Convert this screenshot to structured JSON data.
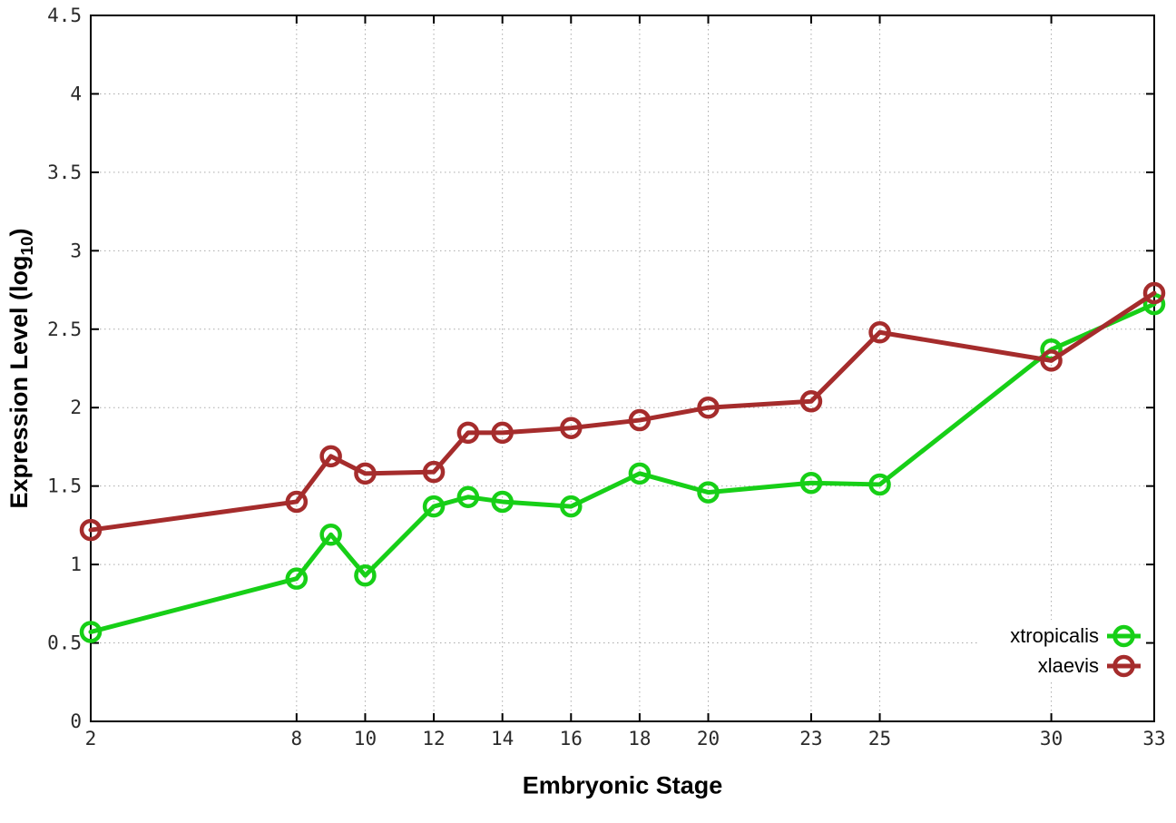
{
  "chart_data": {
    "type": "line",
    "title": "",
    "xlabel": "Embryonic Stage",
    "ylabel": "Expression Level (log10)",
    "ylabel_parts": {
      "main": "Expression Level (log",
      "sub": "10",
      "close": ")"
    },
    "x": [
      2,
      8,
      9,
      10,
      12,
      13,
      14,
      16,
      18,
      20,
      23,
      25,
      30,
      33
    ],
    "series": [
      {
        "name": "xtropicalis",
        "color": "#17cf17",
        "values": [
          0.57,
          0.91,
          1.19,
          0.93,
          1.37,
          1.43,
          1.4,
          1.37,
          1.58,
          1.46,
          1.52,
          1.51,
          2.37,
          2.66
        ]
      },
      {
        "name": "xlaevis",
        "color": "#a52c2c",
        "values": [
          1.22,
          1.4,
          1.69,
          1.58,
          1.59,
          1.84,
          1.84,
          1.87,
          1.92,
          2.0,
          2.04,
          2.48,
          2.3,
          2.73
        ]
      }
    ],
    "xlim": [
      2,
      33
    ],
    "ylim": [
      0,
      4.5
    ],
    "xticks": [
      "2",
      "8",
      "10",
      "12",
      "14",
      "16",
      "18",
      "20",
      "23",
      "25",
      "30",
      "33"
    ],
    "xtick_values": [
      2,
      8,
      10,
      12,
      14,
      16,
      18,
      20,
      23,
      25,
      30,
      33
    ],
    "yticks": [
      "0",
      "0.5",
      "1",
      "1.5",
      "2",
      "2.5",
      "3",
      "3.5",
      "4",
      "4.5"
    ],
    "ytick_values": [
      0,
      0.5,
      1,
      1.5,
      2,
      2.5,
      3,
      3.5,
      4,
      4.5
    ],
    "grid": true,
    "legend_position": "bottom-right",
    "colors": {
      "axis": "#000000",
      "grid": "#aaaaaa",
      "tick_text": "#2a2a2a",
      "background": "#ffffff"
    }
  }
}
